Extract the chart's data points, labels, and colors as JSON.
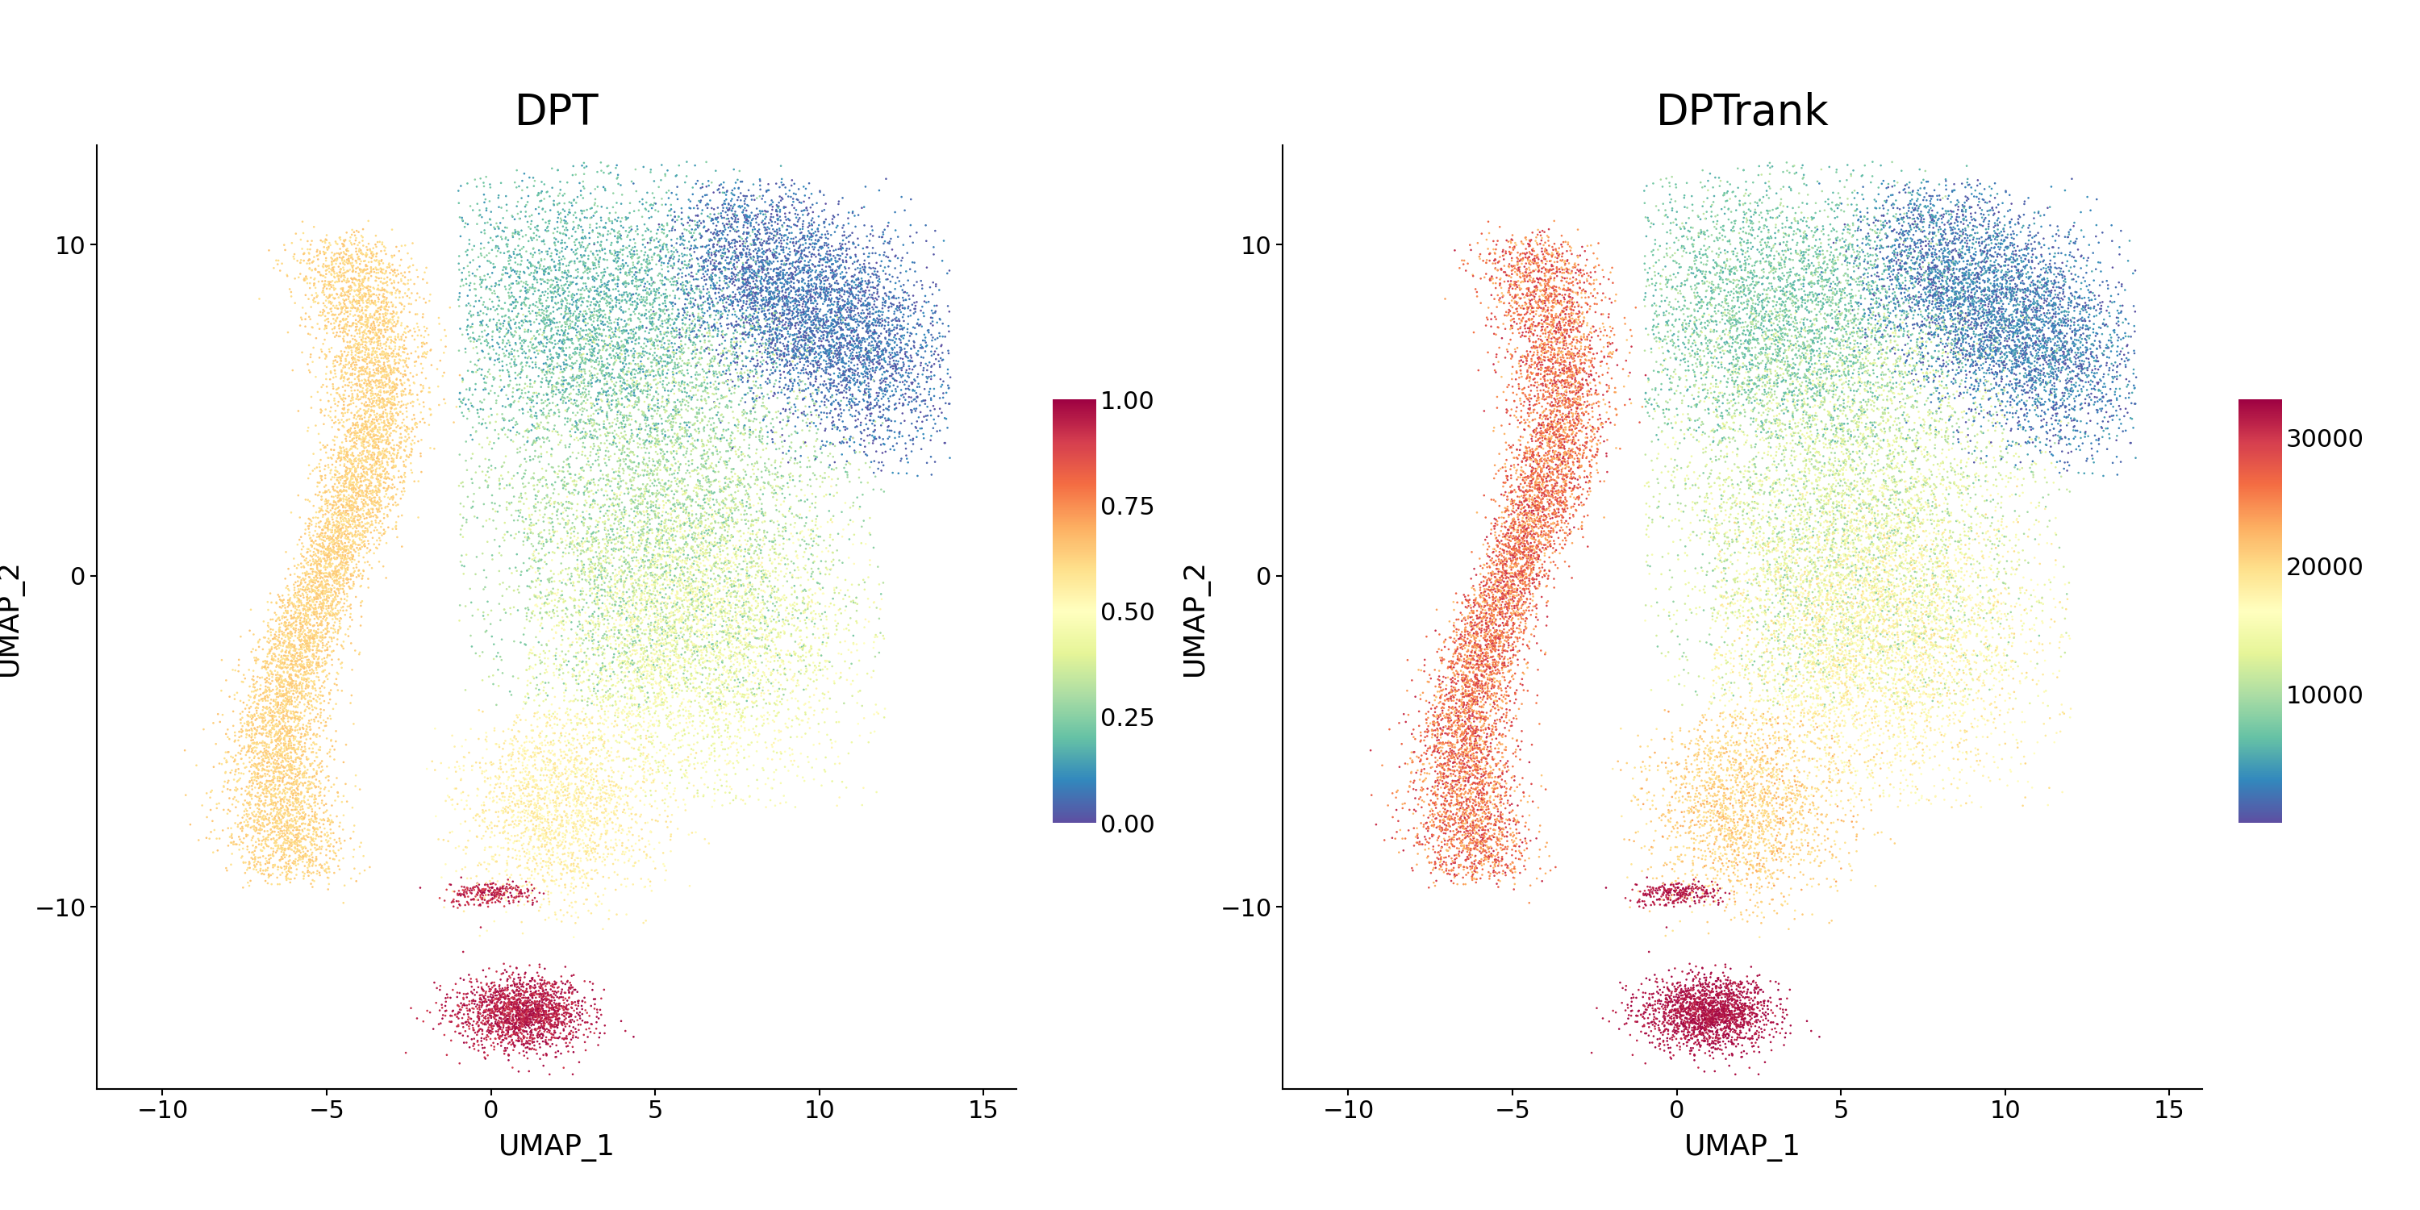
{
  "title_left": "DPT",
  "title_right": "DPTrank",
  "xlabel": "UMAP_1",
  "ylabel": "UMAP_2",
  "xlim": [
    -12,
    16
  ],
  "ylim": [
    -15.5,
    13
  ],
  "xticks": [
    -10,
    -5,
    0,
    5,
    10,
    15
  ],
  "yticks": [
    -10,
    0,
    10
  ],
  "colorbar1_ticks": [
    0.0,
    0.25,
    0.5,
    0.75,
    1.0
  ],
  "colorbar1_labels": [
    "0.00",
    "0.25",
    "0.50",
    "0.75",
    "1.00"
  ],
  "colorbar2_ticks": [
    10000,
    20000,
    30000
  ],
  "colorbar2_labels": [
    "10000",
    "20000",
    "30000"
  ],
  "colormap": "Spectral_r",
  "background_color": "#ffffff",
  "point_size": 3.5,
  "point_alpha": 1.0,
  "seed": 42
}
